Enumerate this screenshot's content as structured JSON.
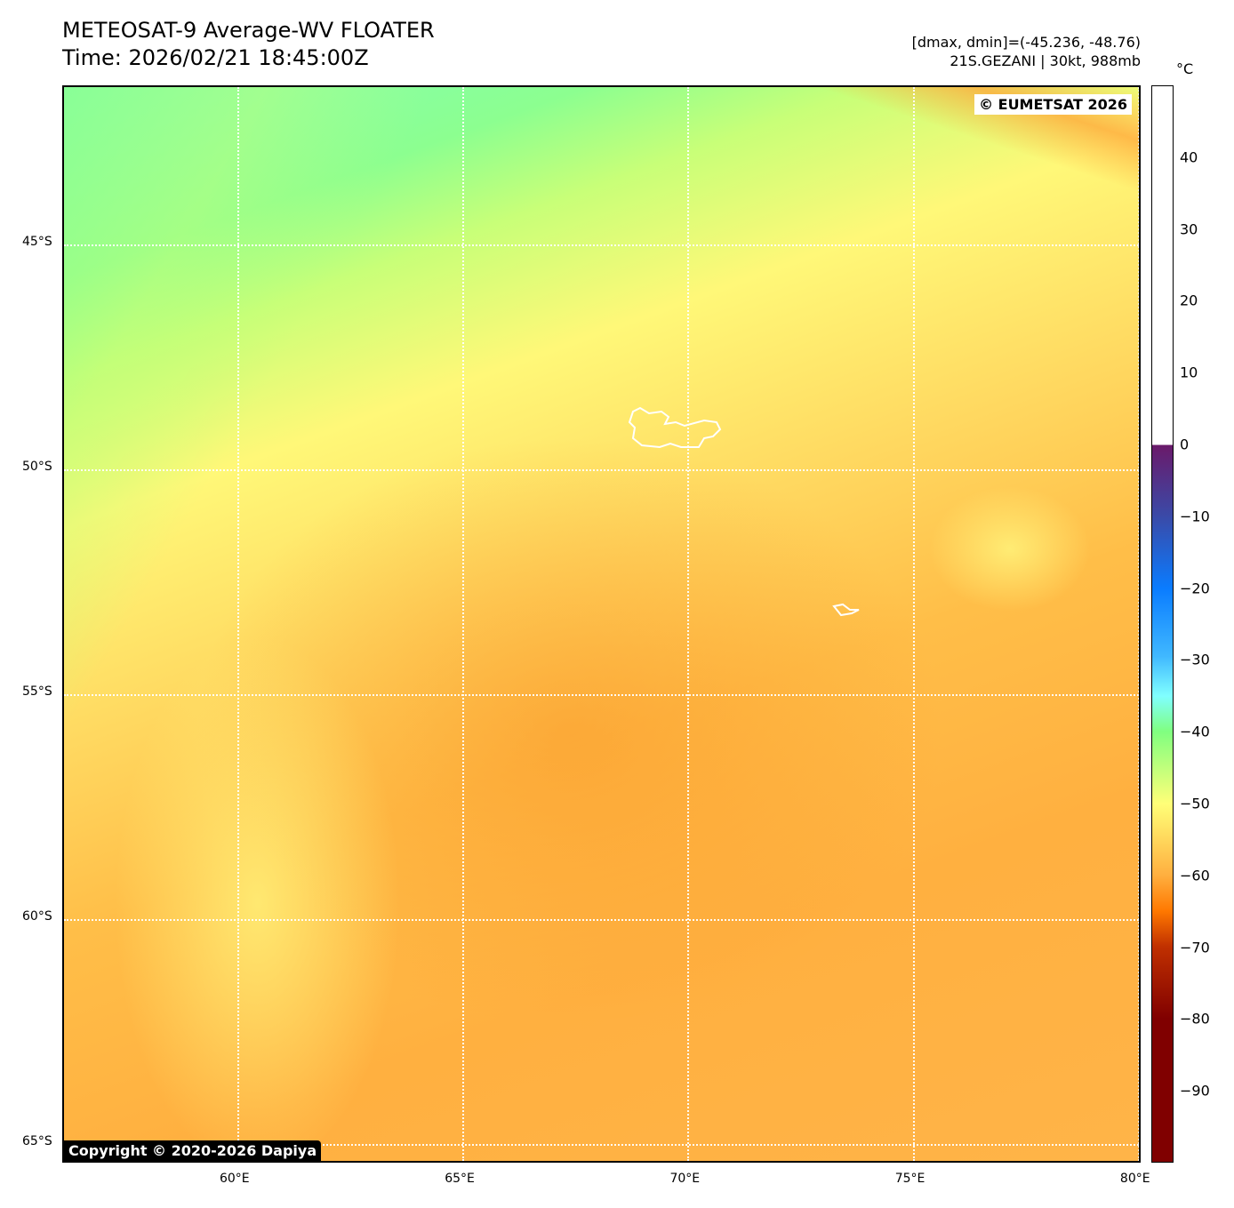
{
  "title": {
    "line1": "METEOSAT-9 Average-WV FLOATER",
    "line2": "Time: 2026/02/21 18:45:00Z"
  },
  "info": {
    "line1": "[dmax, dmin]=(-45.236, -48.76)",
    "line2": "21S.GEZANI | 30kt, 988mb"
  },
  "map": {
    "lon_range": [
      56.15,
      80.1
    ],
    "lat_range": [
      -41.5,
      -65.45
    ],
    "lon_ticks": [
      {
        "v": 60,
        "label": "60°E"
      },
      {
        "v": 65,
        "label": "65°E"
      },
      {
        "v": 70,
        "label": "70°E"
      },
      {
        "v": 75,
        "label": "75°E"
      },
      {
        "v": 80,
        "label": "80°E"
      }
    ],
    "lat_ticks": [
      {
        "v": -45,
        "label": "45°S"
      },
      {
        "v": -50,
        "label": "50°S"
      },
      {
        "v": -55,
        "label": "55°S"
      },
      {
        "v": -60,
        "label": "60°S"
      },
      {
        "v": -65,
        "label": "65°S"
      }
    ],
    "credit_top": "© EUMETSAT 2026",
    "credit_bottom": "Copyright © 2020-2026 Dapiya"
  },
  "colorbar": {
    "unit": "°C",
    "range": [
      -100,
      50
    ],
    "ticks": [
      {
        "v": 40,
        "label": "40"
      },
      {
        "v": 30,
        "label": "30"
      },
      {
        "v": 20,
        "label": "20"
      },
      {
        "v": 10,
        "label": "10"
      },
      {
        "v": 0,
        "label": "0"
      },
      {
        "v": -10,
        "label": "−10"
      },
      {
        "v": -20,
        "label": "−20"
      },
      {
        "v": -30,
        "label": "−30"
      },
      {
        "v": -40,
        "label": "−40"
      },
      {
        "v": -50,
        "label": "−50"
      },
      {
        "v": -60,
        "label": "−60"
      },
      {
        "v": -70,
        "label": "−70"
      },
      {
        "v": -80,
        "label": "−80"
      },
      {
        "v": -90,
        "label": "−90"
      }
    ]
  }
}
